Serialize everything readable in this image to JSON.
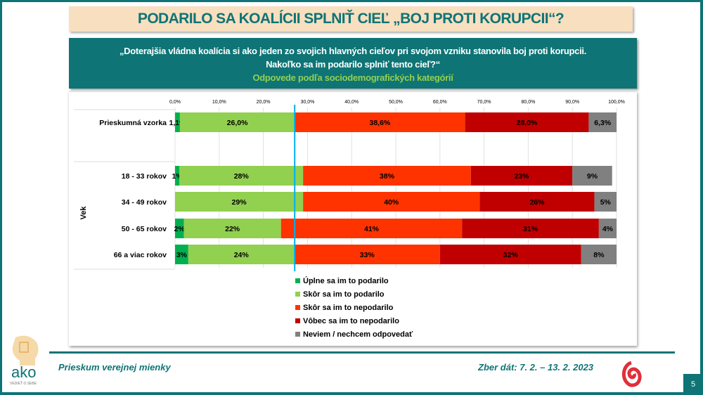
{
  "title": "PODARILO SA KOALÍCII SPLNIŤ CIEĽ „BOJ PROTI KORUPCII“?",
  "question": {
    "line1": "„Doterajšia vládna koalícia si ako jeden zo svojich hlavných cieľov pri svojom vzniku stanovila boj proti korupcii.",
    "line2": "Nakoľko sa im podarilo splniť tento cieľ?“",
    "subtitle": "Odpovede podľa sociodemografických kategórií"
  },
  "chart_data": {
    "type": "bar",
    "orientation": "horizontal-stacked-100",
    "x_ticks": [
      "0,0%",
      "10,0%",
      "20,0%",
      "30,0%",
      "40,0%",
      "50,0%",
      "60,0%",
      "70,0%",
      "80,0%",
      "90,0%",
      "100,0%"
    ],
    "xlim": [
      0,
      100
    ],
    "grid": true,
    "group_label": "Vek",
    "reference_line_value": 27.1,
    "categories": [
      "Prieskumná vzorka",
      "18 - 33 rokov",
      "34 - 49 rokov",
      "50 - 65 rokov",
      "66 a viac rokov"
    ],
    "series": [
      {
        "name": "Úplne sa im to podarilo",
        "color": "#00b050",
        "values": [
          1.1,
          1,
          0,
          2,
          3
        ],
        "labels": [
          "1,1%",
          "1%",
          "",
          "2%",
          "3%"
        ]
      },
      {
        "name": "Skôr sa im to podarilo",
        "color": "#92d050",
        "values": [
          26.0,
          28,
          29,
          22,
          24
        ],
        "labels": [
          "26,0%",
          "28%",
          "29%",
          "22%",
          "24%"
        ]
      },
      {
        "name": "Skôr sa im to nepodarilo",
        "color": "#ff3300",
        "values": [
          38.6,
          38,
          40,
          41,
          33
        ],
        "labels": [
          "38,6%",
          "38%",
          "40%",
          "41%",
          "33%"
        ]
      },
      {
        "name": "Vôbec sa im to nepodarilo",
        "color": "#c00000",
        "values": [
          28.0,
          23,
          26,
          31,
          32
        ],
        "labels": [
          "28,0%",
          "23%",
          "26%",
          "31%",
          "32%"
        ]
      },
      {
        "name": "Neviem / nechcem odpovedať",
        "color": "#808080",
        "values": [
          6.3,
          9,
          5,
          4,
          8
        ],
        "labels": [
          "6,3%",
          "9%",
          "5%",
          "4%",
          "8%"
        ]
      }
    ],
    "legend_position": "bottom"
  },
  "footer": {
    "left": "Prieskum verejnej mienky",
    "right": "Zber dát: 7. 2. – 13. 2. 2023",
    "page": "5",
    "logo_text": "ako",
    "logo_tagline": "VEDIEŤ O SEBE"
  }
}
